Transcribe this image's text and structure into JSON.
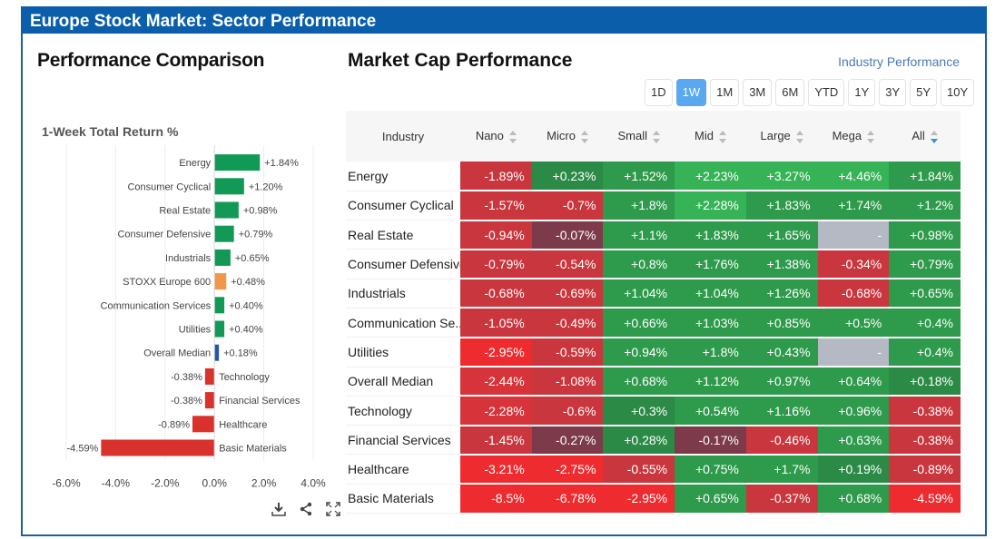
{
  "window": {
    "title": "Europe Stock Market: Sector Performance"
  },
  "left_panel": {
    "title": "Performance Comparison",
    "tools": [
      "download-icon",
      "share-icon",
      "fullscreen-icon"
    ]
  },
  "right_panel": {
    "title": "Market Cap Performance",
    "link": "Industry Performance",
    "periods": [
      "1D",
      "1W",
      "1M",
      "3M",
      "6M",
      "YTD",
      "1Y",
      "3Y",
      "5Y",
      "10Y"
    ],
    "active_period": "1W",
    "columns": [
      "Industry",
      "Nano",
      "Micro",
      "Small",
      "Mid",
      "Large",
      "Mega",
      "All"
    ],
    "sorted_column": "All",
    "rows": [
      {
        "industry": "Energy",
        "values": [
          "-1.89%",
          "+0.23%",
          "+1.52%",
          "+2.23%",
          "+3.27%",
          "+4.46%",
          "+1.84%"
        ]
      },
      {
        "industry": "Consumer Cyclical",
        "values": [
          "-1.57%",
          "-0.7%",
          "+1.8%",
          "+2.28%",
          "+1.83%",
          "+1.74%",
          "+1.2%"
        ]
      },
      {
        "industry": "Real Estate",
        "values": [
          "-0.94%",
          "-0.07%",
          "+1.1%",
          "+1.83%",
          "+1.65%",
          "-",
          "+0.98%"
        ]
      },
      {
        "industry": "Consumer Defensive",
        "values": [
          "-0.79%",
          "-0.54%",
          "+0.8%",
          "+1.76%",
          "+1.38%",
          "-0.34%",
          "+0.79%"
        ]
      },
      {
        "industry": "Industrials",
        "values": [
          "-0.68%",
          "-0.69%",
          "+1.04%",
          "+1.04%",
          "+1.26%",
          "-0.68%",
          "+0.65%"
        ]
      },
      {
        "industry": "Communication Se...",
        "values": [
          "-1.05%",
          "-0.49%",
          "+0.66%",
          "+1.03%",
          "+0.85%",
          "+0.5%",
          "+0.4%"
        ]
      },
      {
        "industry": "Utilities",
        "values": [
          "-2.95%",
          "-0.59%",
          "+0.94%",
          "+1.8%",
          "+0.43%",
          "-",
          "+0.4%"
        ]
      },
      {
        "industry": "Overall Median",
        "values": [
          "-2.44%",
          "-1.08%",
          "+0.68%",
          "+1.12%",
          "+0.97%",
          "+0.64%",
          "+0.18%"
        ]
      },
      {
        "industry": "Technology",
        "values": [
          "-2.28%",
          "-0.6%",
          "+0.3%",
          "+0.54%",
          "+1.16%",
          "+0.96%",
          "-0.38%"
        ]
      },
      {
        "industry": "Financial Services",
        "values": [
          "-1.45%",
          "-0.27%",
          "+0.28%",
          "-0.17%",
          "-0.46%",
          "+0.63%",
          "-0.38%"
        ]
      },
      {
        "industry": "Healthcare",
        "values": [
          "-3.21%",
          "-2.75%",
          "-0.55%",
          "+0.75%",
          "+1.7%",
          "+0.19%",
          "-0.89%"
        ]
      },
      {
        "industry": "Basic Materials",
        "values": [
          "-8.5%",
          "-6.78%",
          "-2.95%",
          "+0.65%",
          "-0.37%",
          "+0.68%",
          "-4.59%"
        ]
      }
    ]
  },
  "colors": {
    "title_bar": "#0b5faa",
    "positive": "#2e9a4b",
    "positive_strong": "#35b356",
    "negative": "#c9363d",
    "negative_strong": "#ee2b2f",
    "neutral_dark": "#7d3a4a",
    "empty": "#b4b9c4",
    "bar_positive": "#119955",
    "bar_index": "#f0974a",
    "bar_median": "#2458a6",
    "bar_negative": "#d9312b"
  },
  "chart_data": {
    "type": "bar",
    "orientation": "horizontal",
    "title": "1-Week Total Return %",
    "xlabel": "",
    "ylabel": "",
    "xlim": [
      -6.0,
      4.0
    ],
    "xticks": [
      "-6.0%",
      "-4.0%",
      "-2.0%",
      "0.0%",
      "2.0%",
      "4.0%"
    ],
    "tick_values": [
      -6,
      -4,
      -2,
      0,
      2,
      4
    ],
    "grid": true,
    "categories": [
      "Energy",
      "Consumer Cyclical",
      "Real Estate",
      "Consumer Defensive",
      "Industrials",
      "STOXX Europe 600",
      "Communication Services",
      "Utilities",
      "Overall Median",
      "Technology",
      "Financial Services",
      "Healthcare",
      "Basic Materials"
    ],
    "values": [
      1.84,
      1.2,
      0.98,
      0.79,
      0.65,
      0.48,
      0.4,
      0.4,
      0.18,
      -0.38,
      -0.38,
      -0.89,
      -4.59
    ],
    "labels": [
      "+1.84%",
      "+1.20%",
      "+0.98%",
      "+0.79%",
      "+0.65%",
      "+0.48%",
      "+0.40%",
      "+0.40%",
      "+0.18%",
      "-0.38%",
      "-0.38%",
      "-0.89%",
      "-4.59%"
    ],
    "kinds": [
      "sector",
      "sector",
      "sector",
      "sector",
      "sector",
      "index",
      "sector",
      "sector",
      "median",
      "sector",
      "sector",
      "sector",
      "sector"
    ]
  }
}
